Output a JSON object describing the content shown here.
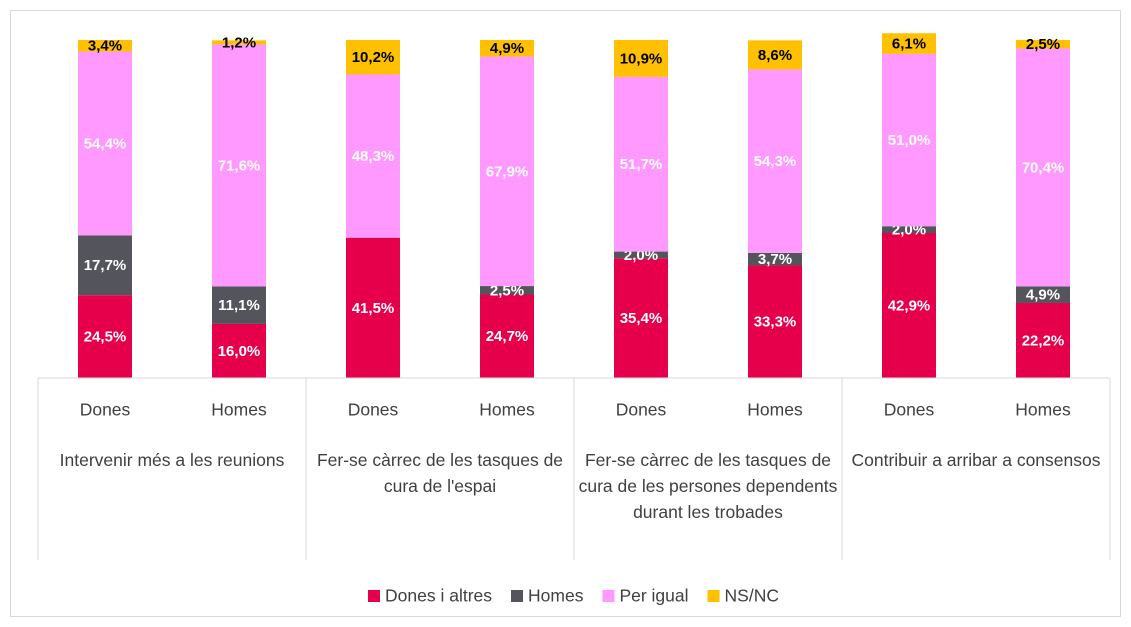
{
  "chart_data": {
    "type": "stacked_bar",
    "categories": [
      "Dones",
      "Homes",
      "Dones",
      "Homes",
      "Dones",
      "Homes",
      "Dones",
      "Homes"
    ],
    "groups": [
      "Intervenir més a les reunions",
      "Fer-se càrrec de les tasques de cura de l'espai",
      "Fer-se càrrec de les tasques de cura de les persones dependents durant les trobades",
      "Contribuir a arribar a consensos"
    ],
    "series": [
      {
        "name": "Dones i altres",
        "color": "#e6004c",
        "values": [
          24.5,
          16.0,
          41.5,
          24.7,
          35.4,
          33.3,
          42.9,
          22.2
        ],
        "value_labels": [
          "24,5%",
          "16,0%",
          "41,5%",
          "24,7%",
          "35,4%",
          "33,3%",
          "42,9%",
          "22,2%"
        ]
      },
      {
        "name": "Homes",
        "color": "#54545c",
        "values": [
          17.7,
          11.1,
          null,
          2.5,
          2.0,
          3.7,
          2.0,
          4.9
        ],
        "value_labels": [
          "17,7%",
          "11,1%",
          null,
          "2,5%",
          "2,0%",
          "3,7%",
          "2,0%",
          "4,9%"
        ]
      },
      {
        "name": "Per igual",
        "color": "#ff99ff",
        "values": [
          54.4,
          71.6,
          48.3,
          67.9,
          51.7,
          54.3,
          51.0,
          70.4
        ],
        "value_labels": [
          "54,4%",
          "71,6%",
          "48,3%",
          "67,9%",
          "51,7%",
          "54,3%",
          "51,0%",
          "70,4%"
        ]
      },
      {
        "name": "NS/NC",
        "color": "#ffc000",
        "values": [
          3.4,
          1.2,
          10.2,
          4.9,
          10.9,
          8.6,
          6.1,
          2.5
        ],
        "value_labels": [
          "3,4%",
          "1,2%",
          "10,2%",
          "4,9%",
          "10,9%",
          "8,6%",
          "6,1%",
          "2,5%"
        ]
      }
    ],
    "ylim": [
      0,
      100
    ]
  }
}
